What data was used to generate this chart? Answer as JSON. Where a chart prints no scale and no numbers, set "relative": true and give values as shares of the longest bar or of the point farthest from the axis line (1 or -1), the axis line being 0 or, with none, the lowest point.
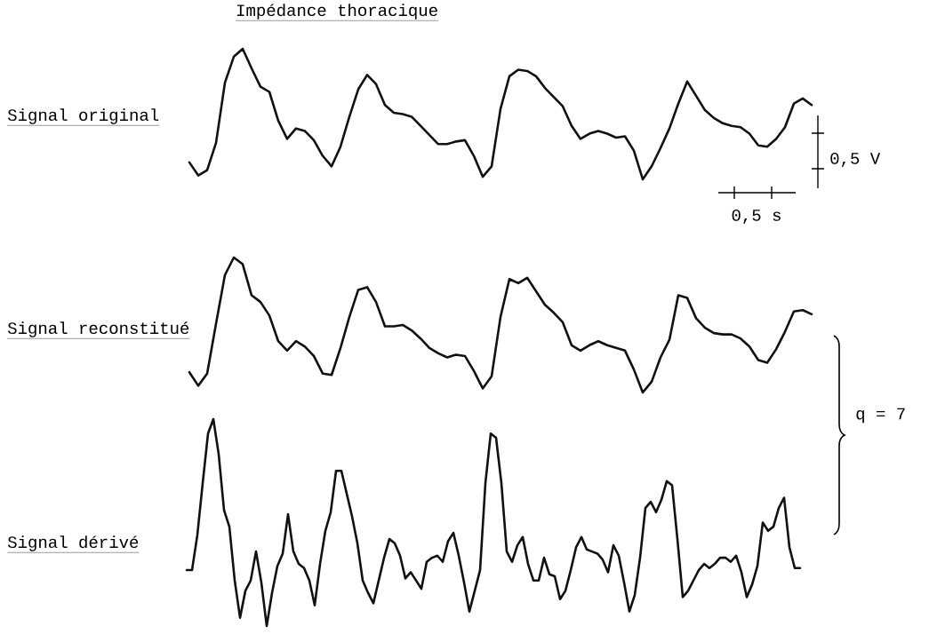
{
  "chart_data": [
    {
      "type": "line",
      "relative": true,
      "title": "Impédance thoracique",
      "ylabel": "Signal original",
      "annotations": [
        "0,5 V",
        "0,5 s"
      ],
      "categories": [
        null,
        null,
        null,
        null,
        null,
        null,
        null,
        null,
        null,
        null,
        null,
        null,
        null,
        null,
        null,
        null,
        null,
        null,
        null,
        null,
        null,
        null,
        null,
        null,
        null,
        null,
        null,
        null,
        null,
        null,
        null,
        null,
        null,
        null,
        null,
        null,
        null,
        null,
        null,
        null,
        null,
        null,
        null,
        null,
        null,
        null,
        null,
        null,
        null,
        null,
        null,
        null,
        null,
        null,
        null,
        null,
        null,
        null,
        null,
        null,
        null,
        null,
        null,
        null,
        null,
        null,
        null,
        null,
        null,
        null,
        null
      ],
      "series": [
        {
          "color": "#111111",
          "values": [
            0.13,
            0.03,
            0.07,
            0.28,
            0.74,
            0.94,
            1.0,
            0.85,
            0.71,
            0.67,
            0.45,
            0.31,
            0.39,
            0.37,
            0.3,
            0.18,
            0.1,
            0.25,
            0.48,
            0.69,
            0.8,
            0.73,
            0.57,
            0.51,
            0.5,
            0.48,
            0.41,
            0.34,
            0.27,
            0.27,
            0.29,
            0.3,
            0.18,
            0.02,
            0.1,
            0.54,
            0.79,
            0.84,
            0.83,
            0.79,
            0.7,
            0.63,
            0.56,
            0.41,
            0.31,
            0.35,
            0.37,
            0.35,
            0.32,
            0.33,
            0.22,
            0.0,
            0.1,
            0.24,
            0.39,
            0.58,
            0.75,
            0.64,
            0.53,
            0.47,
            0.43,
            0.41,
            0.4,
            0.35,
            0.26,
            0.25,
            0.31,
            0.4,
            0.58,
            0.62,
            0.57
          ]
        }
      ]
    },
    {
      "type": "line",
      "relative": true,
      "ylabel": "Signal reconstitué",
      "annotations": [
        "q = 7"
      ],
      "categories": [
        null,
        null,
        null,
        null,
        null,
        null,
        null,
        null,
        null,
        null,
        null,
        null,
        null,
        null,
        null,
        null,
        null,
        null,
        null,
        null,
        null,
        null,
        null,
        null,
        null,
        null,
        null,
        null,
        null,
        null,
        null,
        null,
        null,
        null,
        null,
        null,
        null,
        null,
        null,
        null,
        null,
        null,
        null,
        null,
        null,
        null,
        null,
        null,
        null,
        null,
        null,
        null,
        null,
        null,
        null,
        null,
        null,
        null,
        null,
        null,
        null,
        null,
        null,
        null,
        null,
        null,
        null,
        null,
        null,
        null,
        null
      ],
      "series": [
        {
          "color": "#111111",
          "values": [
            0.15,
            0.05,
            0.14,
            0.51,
            0.87,
            1.0,
            0.95,
            0.72,
            0.67,
            0.57,
            0.38,
            0.31,
            0.38,
            0.34,
            0.27,
            0.14,
            0.13,
            0.33,
            0.56,
            0.76,
            0.78,
            0.67,
            0.49,
            0.49,
            0.5,
            0.46,
            0.4,
            0.33,
            0.29,
            0.26,
            0.28,
            0.27,
            0.16,
            0.03,
            0.12,
            0.56,
            0.84,
            0.81,
            0.85,
            0.75,
            0.65,
            0.59,
            0.52,
            0.35,
            0.31,
            0.35,
            0.38,
            0.35,
            0.33,
            0.31,
            0.17,
            0.0,
            0.08,
            0.26,
            0.39,
            0.72,
            0.7,
            0.55,
            0.48,
            0.44,
            0.43,
            0.43,
            0.4,
            0.34,
            0.24,
            0.22,
            0.32,
            0.45,
            0.6,
            0.61,
            0.58
          ]
        }
      ]
    },
    {
      "type": "line",
      "relative": true,
      "ylabel": "Signal dérivé",
      "categories": [
        null,
        null,
        null,
        null,
        null,
        null,
        null,
        null,
        null,
        null,
        null,
        null,
        null,
        null,
        null,
        null,
        null,
        null,
        null,
        null,
        null,
        null,
        null,
        null,
        null,
        null,
        null,
        null,
        null,
        null,
        null,
        null,
        null,
        null,
        null,
        null,
        null,
        null,
        null,
        null,
        null,
        null,
        null,
        null,
        null,
        null,
        null,
        null,
        null,
        null,
        null,
        null,
        null,
        null,
        null,
        null,
        null,
        null,
        null,
        null,
        null,
        null,
        null,
        null,
        null,
        null,
        null,
        null,
        null,
        null,
        null,
        null,
        null,
        null,
        null,
        null,
        null,
        null,
        null,
        null,
        null,
        null,
        null,
        null,
        null,
        null,
        null,
        null,
        null,
        null,
        null,
        null,
        null,
        null,
        null,
        null,
        null,
        null,
        null,
        null,
        null,
        null,
        null,
        null,
        null,
        null,
        null,
        null,
        null,
        null,
        null,
        null,
        null,
        null,
        null,
        null
      ],
      "series": [
        {
          "color": "#111111",
          "values": [
            0.27,
            0.27,
            0.44,
            0.69,
            0.93,
            1.0,
            0.83,
            0.56,
            0.48,
            0.22,
            0.04,
            0.17,
            0.22,
            0.36,
            0.21,
            0.0,
            0.16,
            0.29,
            0.35,
            0.54,
            0.36,
            0.3,
            0.28,
            0.22,
            0.1,
            0.3,
            0.46,
            0.55,
            0.75,
            0.75,
            0.64,
            0.53,
            0.4,
            0.22,
            0.16,
            0.11,
            0.22,
            0.33,
            0.42,
            0.4,
            0.34,
            0.23,
            0.26,
            0.22,
            0.18,
            0.31,
            0.33,
            0.34,
            0.31,
            0.41,
            0.45,
            0.34,
            0.21,
            0.07,
            0.17,
            0.27,
            0.69,
            0.93,
            0.91,
            0.69,
            0.36,
            0.31,
            0.39,
            0.43,
            0.3,
            0.22,
            0.22,
            0.33,
            0.25,
            0.24,
            0.13,
            0.17,
            0.27,
            0.38,
            0.43,
            0.37,
            0.36,
            0.35,
            0.32,
            0.26,
            0.39,
            0.34,
            0.21,
            0.07,
            0.15,
            0.33,
            0.57,
            0.6,
            0.55,
            0.61,
            0.7,
            0.68,
            0.42,
            0.14,
            0.17,
            0.22,
            0.27,
            0.3,
            0.28,
            0.3,
            0.33,
            0.33,
            0.31,
            0.34,
            0.26,
            0.14,
            0.2,
            0.29,
            0.5,
            0.46,
            0.48,
            0.57,
            0.62,
            0.38,
            0.28,
            0.28
          ]
        }
      ]
    }
  ]
}
